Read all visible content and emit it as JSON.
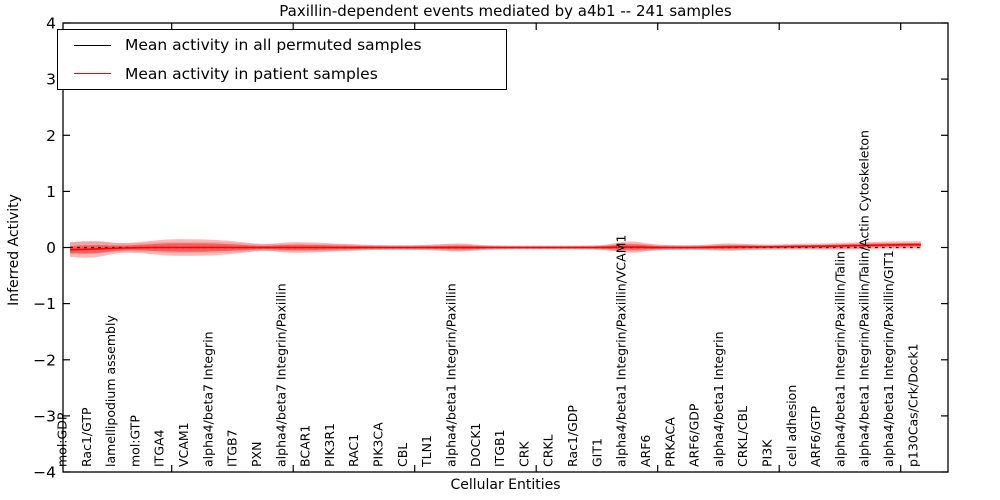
{
  "title": "Paxillin-dependent events mediated by a4b1 -- 241 samples",
  "xlabel": "Cellular Entities",
  "ylabel": "Inferred Activity",
  "legend": {
    "items": [
      {
        "label": "Mean activity in all permuted samples",
        "color": "#000000"
      },
      {
        "label": "Mean activity in patient samples",
        "color": "#ff0000"
      }
    ]
  },
  "colors": {
    "permuted_line": "#000000",
    "patient_line": "#ff0000",
    "patient_band": "#ff0000",
    "permuted_band": "#555555",
    "frame": "#000000"
  },
  "chart_data": {
    "type": "line",
    "title": "Paxillin-dependent events mediated by a4b1 -- 241 samples",
    "xlabel": "Cellular Entities",
    "ylabel": "Inferred Activity",
    "ylim": [
      -4,
      4
    ],
    "yticks": [
      -4,
      -3,
      -2,
      -1,
      0,
      1,
      2,
      3,
      4
    ],
    "grid": false,
    "legend_position": "upper left",
    "categories": [
      "mol:GDP",
      "Rac1/GTP",
      "lamellipodium assembly",
      "mol:GTP",
      "ITGA4",
      "VCAM1",
      "alpha4/beta7 Integrin",
      "ITGB7",
      "PXN",
      "alpha4/beta7 Integrin/Paxillin",
      "BCAR1",
      "PIK3R1",
      "RAC1",
      "PIK3CA",
      "CBL",
      "TLN1",
      "alpha4/beta1 Integrin/Paxillin",
      "DOCK1",
      "ITGB1",
      "CRK",
      "CRKL",
      "Rac1/GDP",
      "GIT1",
      "alpha4/beta1 Integrin/Paxillin/VCAM1",
      "ARF6",
      "PRKACA",
      "ARF6/GDP",
      "alpha4/beta1 Integrin",
      "CRKL/CBL",
      "PI3K",
      "cell adhesion",
      "ARF6/GTP",
      "alpha4/beta1 Integrin/Paxillin/Talin",
      "alpha4/beta1 Integrin/Paxillin/Talin/Actin Cytoskeleton",
      "alpha4/beta1 Integrin/Paxillin/GIT1",
      "p130Cas/Crk/Dock1"
    ],
    "series": [
      {
        "name": "Mean activity in all permuted samples",
        "color": "#000000",
        "style": "dashed",
        "values": [
          0,
          0,
          0,
          0,
          0,
          0,
          0,
          0,
          0,
          0,
          0,
          0,
          0,
          0,
          0,
          0,
          0,
          0,
          0,
          0,
          0,
          0,
          0,
          0,
          0,
          0,
          0,
          0,
          0,
          0,
          0,
          0,
          0,
          0,
          0,
          0
        ]
      },
      {
        "name": "Mean activity in patient samples",
        "color": "#ff0000",
        "style": "solid",
        "values": [
          -0.04,
          -0.03,
          -0.01,
          0,
          0,
          0,
          0,
          0,
          0,
          0,
          0,
          0,
          0,
          0,
          0,
          0,
          0,
          0,
          0,
          0,
          0,
          0,
          0,
          0.01,
          0,
          0,
          0,
          0.01,
          0.01,
          0.01,
          0.02,
          0.02,
          0.03,
          0.04,
          0.05,
          0.05
        ]
      }
    ],
    "bands": [
      {
        "name": "permuted std band",
        "color": "#555555",
        "opacity": 0.14,
        "center_series": 0,
        "half_widths": [
          0.1,
          0.12,
          0.07,
          0.08,
          0.1,
          0.1,
          0.1,
          0.08,
          0.06,
          0.07,
          0.07,
          0.06,
          0.05,
          0.04,
          0.04,
          0.05,
          0.06,
          0.04,
          0.03,
          0.03,
          0.03,
          0.03,
          0.04,
          0.08,
          0.05,
          0.04,
          0.04,
          0.06,
          0.05,
          0.04,
          0.04,
          0.04,
          0.05,
          0.05,
          0.05,
          0.05
        ]
      },
      {
        "name": "patient std band",
        "color": "#ff0000",
        "opacity": 0.28,
        "center_series": 1,
        "half_widths": [
          0.13,
          0.16,
          0.08,
          0.1,
          0.15,
          0.15,
          0.14,
          0.1,
          0.05,
          0.1,
          0.09,
          0.07,
          0.05,
          0.04,
          0.04,
          0.05,
          0.08,
          0.04,
          0.03,
          0.03,
          0.03,
          0.03,
          0.04,
          0.12,
          0.05,
          0.04,
          0.04,
          0.07,
          0.05,
          0.04,
          0.05,
          0.05,
          0.06,
          0.06,
          0.06,
          0.06
        ]
      }
    ]
  }
}
